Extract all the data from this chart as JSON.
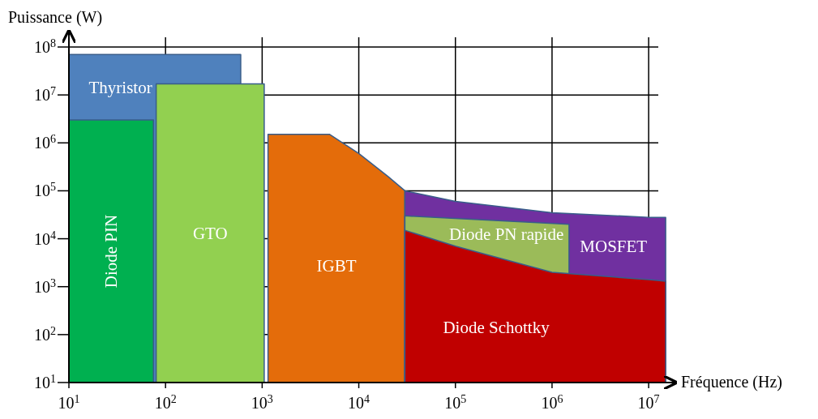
{
  "chart_data": {
    "type": "area",
    "xlabel": "Fréquence (Hz)",
    "ylabel": "Puissance (W)",
    "log": "xy",
    "grid": true,
    "xlim": [
      10,
      20000000
    ],
    "ylim": [
      10,
      100000000
    ],
    "xticks": [
      {
        "value": 10,
        "label": "10$^{1}$"
      },
      {
        "value": 100,
        "label": "10$^{2}$"
      },
      {
        "value": 1000,
        "label": "10$^{3}$"
      },
      {
        "value": 10000,
        "label": "10$^{4}$"
      },
      {
        "value": 100000,
        "label": "10$^{5}$"
      },
      {
        "value": 1000000,
        "label": "10$^{6}$"
      },
      {
        "value": 10000000,
        "label": "10$^{7}$"
      }
    ],
    "yticks": [
      {
        "value": 10,
        "label": "10$^{1}$"
      },
      {
        "value": 100,
        "label": "10$^{2}$"
      },
      {
        "value": 1000,
        "label": "10$^{3}$"
      },
      {
        "value": 10000,
        "label": "10$^{4}$"
      },
      {
        "value": 100000,
        "label": "10$^{5}$"
      },
      {
        "value": 1000000,
        "label": "10$^{6}$"
      },
      {
        "value": 10000000,
        "label": "10$^{7}$"
      },
      {
        "value": 100000000,
        "label": "10$^{8}$"
      }
    ],
    "series": [
      {
        "name": "Thyristor",
        "color": "#4f81bd",
        "x": [
          10,
          600
        ],
        "values": [
          70000000,
          70000000
        ]
      },
      {
        "name": "Diode PIN",
        "color": "#00b050",
        "x": [
          10,
          75
        ],
        "values": [
          3000000,
          3000000
        ]
      },
      {
        "name": "IGBT",
        "color": "#e46c0a",
        "x": [
          1150,
          5000,
          10000,
          20000,
          30000
        ],
        "values": [
          1500000,
          1500000,
          600000,
          200000,
          100000
        ]
      },
      {
        "name": "MOSFET",
        "color": "#7030a0",
        "x": [
          30000,
          100000,
          1000000,
          10000000,
          15000000
        ],
        "values": [
          100000,
          60000,
          35000,
          28000,
          28000
        ]
      },
      {
        "name": "Diode PN rapide",
        "color": "#9bbb59",
        "x": [
          30000,
          1500000
        ],
        "values": [
          30000,
          20000
        ]
      },
      {
        "name": "Diode Schottky",
        "color": "#c00000",
        "x": [
          30000,
          100000,
          1000000,
          10000000,
          15000000
        ],
        "values": [
          15000,
          7000,
          2000,
          1400,
          1300
        ]
      },
      {
        "name": "GTO",
        "color": "#92d050",
        "x": [
          80,
          1050
        ],
        "values": [
          17000000,
          17000000
        ]
      }
    ]
  }
}
